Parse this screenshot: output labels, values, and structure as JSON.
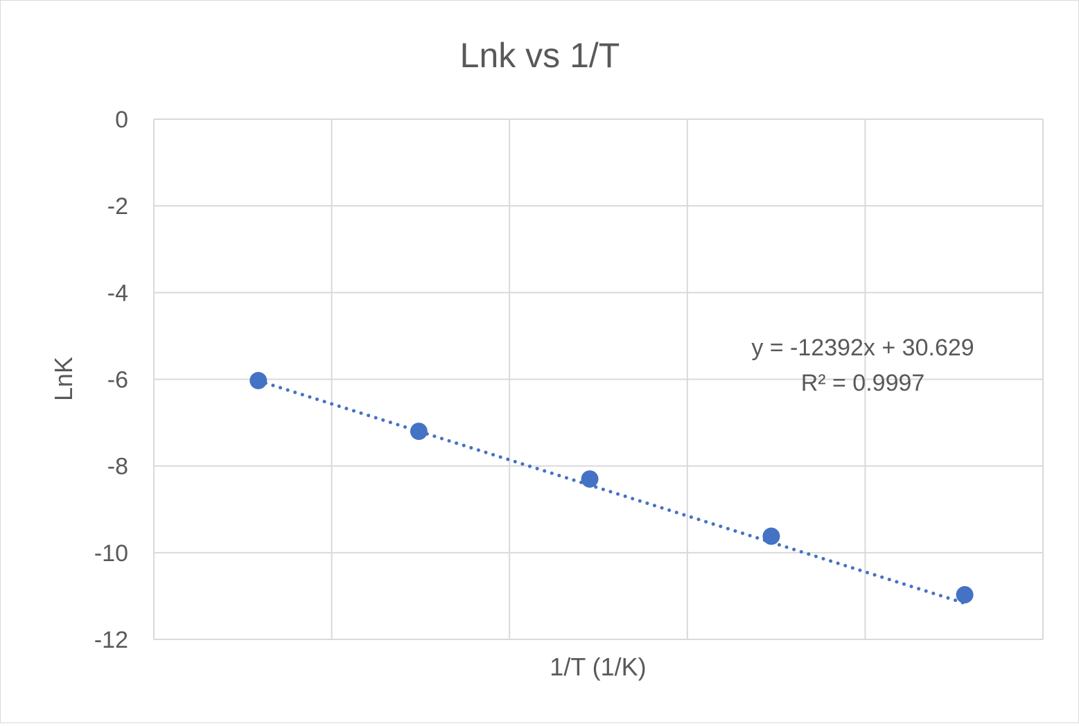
{
  "chart_data": {
    "type": "scatter",
    "title": "Lnk vs 1/T",
    "xlabel": "1/T (1/K)",
    "ylabel": "LnK",
    "ylim": [
      -12,
      0
    ],
    "yticks": [
      "0",
      "-2",
      "-4",
      "-6",
      "-8",
      "-10",
      "-12"
    ],
    "ytick_values": [
      0,
      -2,
      -4,
      -6,
      -8,
      -10,
      -12
    ],
    "x_gridlines": 5,
    "grid": true,
    "legend": "none",
    "series": [
      {
        "color": "#4472c4",
        "points": [
          {
            "x": 0.0029586,
            "y": -6.03
          },
          {
            "x": 0.0030527,
            "y": -7.2
          },
          {
            "x": 0.0031529,
            "y": -8.3
          },
          {
            "x": 0.0032593,
            "y": -9.62
          },
          {
            "x": 0.0033727,
            "y": -10.97
          }
        ]
      }
    ],
    "trendline": {
      "style": "dotted",
      "color": "#4472c4",
      "slope": -12392,
      "intercept": 30.629,
      "equation": "y = -12392x + 30.629",
      "r_squared": "R² = 0.9997"
    },
    "colors": {
      "grid": "#d9d9d9",
      "text": "#595959",
      "marker": "#4472c4"
    }
  }
}
